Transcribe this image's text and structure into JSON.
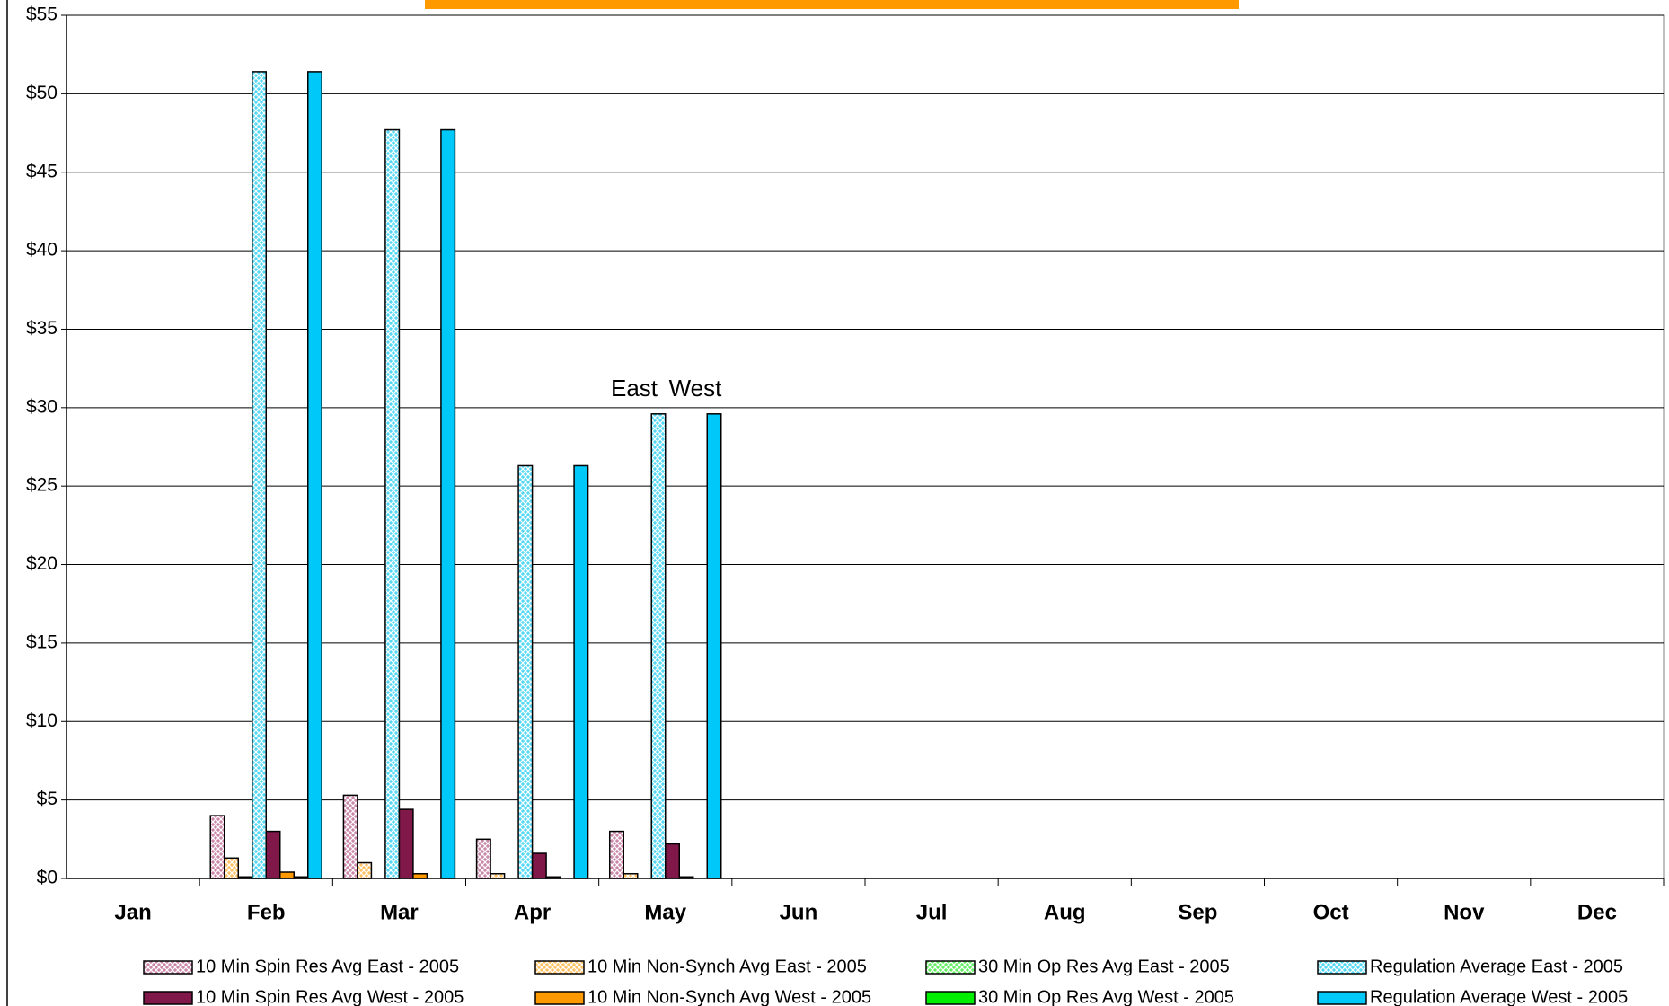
{
  "chart_data": {
    "type": "bar",
    "categories": [
      "Jan",
      "Feb",
      "Mar",
      "Apr",
      "May",
      "Jun",
      "Jul",
      "Aug",
      "Sep",
      "Oct",
      "Nov",
      "Dec"
    ],
    "series": [
      {
        "name": "10 Min Spin Res Avg East - 2005",
        "color": "#cc88aa",
        "hatched": true,
        "values": [
          null,
          4.0,
          5.3,
          2.5,
          3.0,
          null,
          null,
          null,
          null,
          null,
          null,
          null
        ]
      },
      {
        "name": "10 Min Non-Synch Avg East - 2005",
        "color": "#ffc266",
        "hatched": true,
        "values": [
          null,
          1.3,
          1.0,
          0.3,
          0.3,
          null,
          null,
          null,
          null,
          null,
          null,
          null
        ]
      },
      {
        "name": "30 Min Op Res Avg East - 2005",
        "color": "#66ee66",
        "hatched": true,
        "values": [
          null,
          0.1,
          0.0,
          0.0,
          0.0,
          null,
          null,
          null,
          null,
          null,
          null,
          null
        ]
      },
      {
        "name": "Regulation Average East - 2005",
        "color": "#55d8f5",
        "hatched": true,
        "values": [
          null,
          51.4,
          47.7,
          26.3,
          29.6,
          null,
          null,
          null,
          null,
          null,
          null,
          null
        ]
      },
      {
        "name": "10 Min Spin Res Avg West - 2005",
        "color": "#80184a",
        "hatched": false,
        "values": [
          null,
          3.0,
          4.4,
          1.6,
          2.2,
          null,
          null,
          null,
          null,
          null,
          null,
          null
        ]
      },
      {
        "name": "10 Min Non-Synch Avg West - 2005",
        "color": "#ff9900",
        "hatched": false,
        "values": [
          null,
          0.4,
          0.3,
          0.1,
          0.1,
          null,
          null,
          null,
          null,
          null,
          null,
          null
        ]
      },
      {
        "name": "30 Min Op Res Avg West - 2005",
        "color": "#00ee00",
        "hatched": false,
        "values": [
          null,
          0.1,
          0.0,
          0.0,
          0.0,
          null,
          null,
          null,
          null,
          null,
          null,
          null
        ]
      },
      {
        "name": "Regulation Average West - 2005",
        "color": "#00c8f8",
        "hatched": false,
        "values": [
          null,
          51.4,
          47.7,
          26.3,
          29.6,
          null,
          null,
          null,
          null,
          null,
          null,
          null
        ]
      }
    ],
    "annotations": [
      "East",
      "West"
    ],
    "ylim": [
      0,
      55
    ],
    "yticks": [
      {
        "value": 0,
        "label": "$0"
      },
      {
        "value": 5,
        "label": "$5"
      },
      {
        "value": 10,
        "label": "$10"
      },
      {
        "value": 15,
        "label": "$15"
      },
      {
        "value": 20,
        "label": "$20"
      },
      {
        "value": 25,
        "label": "$25"
      },
      {
        "value": 30,
        "label": "$30"
      },
      {
        "value": 35,
        "label": "$35"
      },
      {
        "value": 40,
        "label": "$40"
      },
      {
        "value": 45,
        "label": "$45"
      },
      {
        "value": 50,
        "label": "$50"
      },
      {
        "value": 55,
        "label": "$55"
      }
    ],
    "grid": true
  }
}
